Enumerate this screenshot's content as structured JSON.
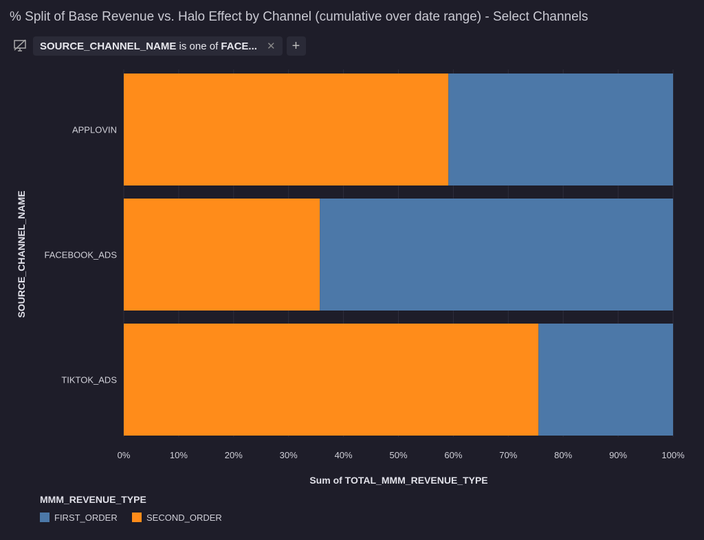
{
  "title": "% Split of Base Revenue vs. Halo Effect by Channel (cumulative over date range) - Select Channels",
  "filter": {
    "field": "SOURCE_CHANNEL_NAME",
    "operator": "is one of",
    "value": "FACE...",
    "icon": "monitor-off-icon",
    "add_label": "+",
    "remove_label": "✕"
  },
  "chart_data": {
    "type": "bar",
    "orientation": "horizontal",
    "stacked": "normalized",
    "categories": [
      "APPLOVIN",
      "FACEBOOK_ADS",
      "TIKTOK_ADS"
    ],
    "series": [
      {
        "name": "SECOND_ORDER",
        "color": "#ff8c1a",
        "values": [
          59.1,
          35.7,
          75.5
        ]
      },
      {
        "name": "FIRST_ORDER",
        "color": "#4c78a8",
        "values": [
          40.9,
          64.3,
          24.5
        ]
      }
    ],
    "xlabel": "Sum of TOTAL_MMM_REVENUE_TYPE",
    "ylabel": "SOURCE_CHANNEL_NAME",
    "xlim": [
      0,
      100
    ],
    "xticks": [
      "0%",
      "10%",
      "20%",
      "30%",
      "40%",
      "50%",
      "60%",
      "70%",
      "80%",
      "90%",
      "100%"
    ],
    "grid": true,
    "legend": {
      "title": "MMM_REVENUE_TYPE",
      "placement": "bottom-left",
      "entries": [
        "FIRST_ORDER",
        "SECOND_ORDER"
      ]
    }
  }
}
